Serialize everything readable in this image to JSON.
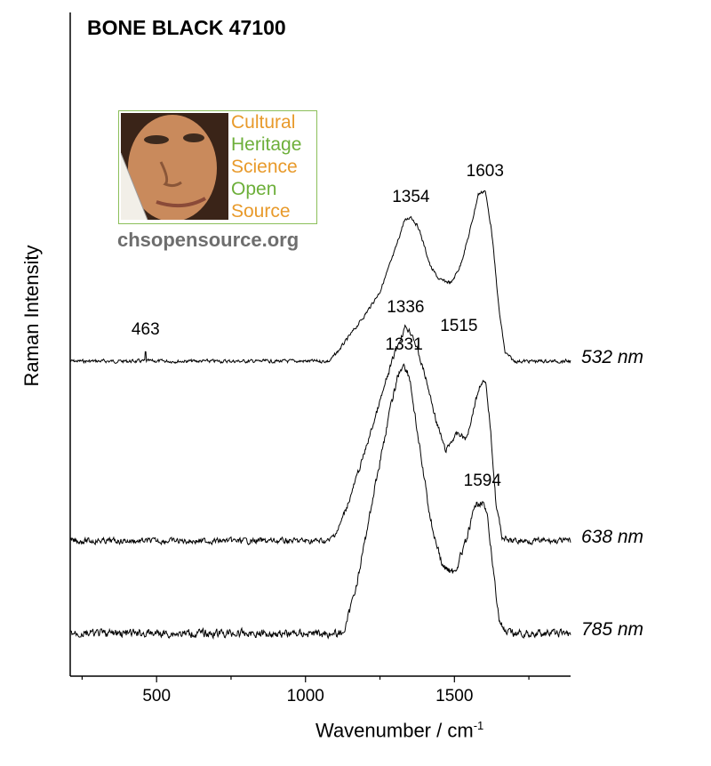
{
  "chart_data": {
    "type": "line",
    "title": "BONE BLACK 47100",
    "xlabel": "Wavenumber / cm",
    "xlabel_sup": "-1",
    "ylabel": "Raman Intensity",
    "xlim": [
      210,
      1890
    ],
    "x_ticks": [
      500,
      1000,
      1500
    ],
    "grid": false,
    "series": [
      {
        "name": "532 nm",
        "color": "#000000",
        "x": [
          210,
          400,
          460,
          463,
          466,
          600,
          800,
          1000,
          1080,
          1110,
          1150,
          1200,
          1250,
          1300,
          1330,
          1354,
          1380,
          1420,
          1450,
          1490,
          1520,
          1550,
          1580,
          1603,
          1625,
          1650,
          1670,
          1700,
          1800,
          1890
        ],
        "y": [
          0.0,
          0.0,
          0.0,
          0.085,
          0.0,
          0.0,
          0.0,
          0.0,
          0.0,
          0.07,
          0.18,
          0.32,
          0.48,
          0.76,
          0.96,
          1.0,
          0.92,
          0.65,
          0.56,
          0.54,
          0.66,
          0.88,
          1.15,
          1.18,
          0.9,
          0.35,
          0.06,
          0.0,
          0.0,
          0.0
        ],
        "peak_labels": [
          {
            "x": 463,
            "label": "463"
          },
          {
            "x": 1354,
            "label": "1354"
          },
          {
            "x": 1603,
            "label": "1603"
          }
        ]
      },
      {
        "name": "638 nm",
        "color": "#000000",
        "x": [
          210,
          1000,
          1080,
          1110,
          1150,
          1200,
          1250,
          1300,
          1336,
          1360,
          1400,
          1440,
          1470,
          1500,
          1515,
          1540,
          1570,
          1590,
          1605,
          1620,
          1640,
          1660,
          1680,
          1720,
          1890
        ],
        "y": [
          0.0,
          0.0,
          0.0,
          0.08,
          0.3,
          0.62,
          0.96,
          1.3,
          1.48,
          1.42,
          1.15,
          0.82,
          0.62,
          0.72,
          0.74,
          0.7,
          0.96,
          1.1,
          1.08,
          0.8,
          0.25,
          0.03,
          0.0,
          0.0,
          0.0
        ],
        "peak_labels": [
          {
            "x": 1336,
            "label": "1336"
          },
          {
            "x": 1515,
            "label": "1515"
          }
        ]
      },
      {
        "name": "785 nm",
        "color": "#000000",
        "x": [
          210,
          1000,
          1120,
          1135,
          1180,
          1230,
          1280,
          1310,
          1331,
          1350,
          1380,
          1420,
          1460,
          1500,
          1540,
          1570,
          1594,
          1610,
          1630,
          1650,
          1670,
          1700,
          1890
        ],
        "y": [
          0.0,
          0.0,
          0.0,
          0.04,
          0.42,
          0.98,
          1.5,
          1.78,
          1.86,
          1.76,
          1.32,
          0.78,
          0.46,
          0.42,
          0.64,
          0.88,
          0.92,
          0.8,
          0.45,
          0.1,
          0.0,
          0.0,
          0.0
        ],
        "peak_labels": [
          {
            "x": 1331,
            "label": "1331"
          },
          {
            "x": 1594,
            "label": "1594"
          }
        ]
      }
    ]
  },
  "logo": {
    "words": [
      "Cultural",
      "Heritage",
      "Science",
      "Open",
      "Source"
    ],
    "url": "chsopensource.org"
  }
}
